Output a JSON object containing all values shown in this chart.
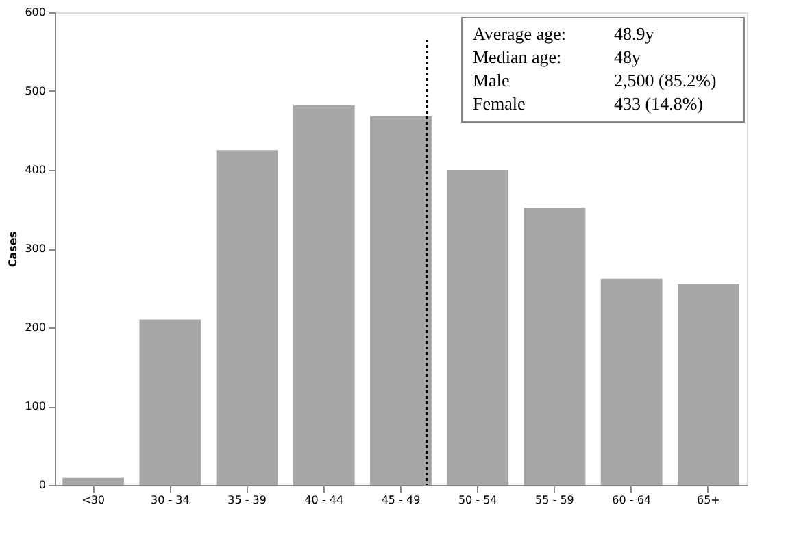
{
  "chart_data": {
    "type": "bar",
    "ylabel": "Cases",
    "categories": [
      "<30",
      "30 - 34",
      "35 - 39",
      "40 - 44",
      "45 - 49",
      "50 - 54",
      "55 - 59",
      "60 - 64",
      "65+"
    ],
    "values": [
      9,
      210,
      425,
      482,
      468,
      400,
      352,
      262,
      255
    ],
    "color": "#a6a6a6",
    "ylim": [
      0,
      600
    ],
    "yticks": [
      0,
      100,
      200,
      300,
      400,
      500,
      600
    ],
    "grid": false,
    "ref_lines": [
      {
        "axis": "x",
        "value": "45 - 49",
        "line_style": "dotted",
        "color": "#000000",
        "label": null
      }
    ],
    "annotations": [
      "Average age:",
      "48.9y",
      "Median age:",
      "48y",
      "Male",
      "2,500 (85.2%)",
      "Female",
      "433 (14.8%)"
    ]
  }
}
